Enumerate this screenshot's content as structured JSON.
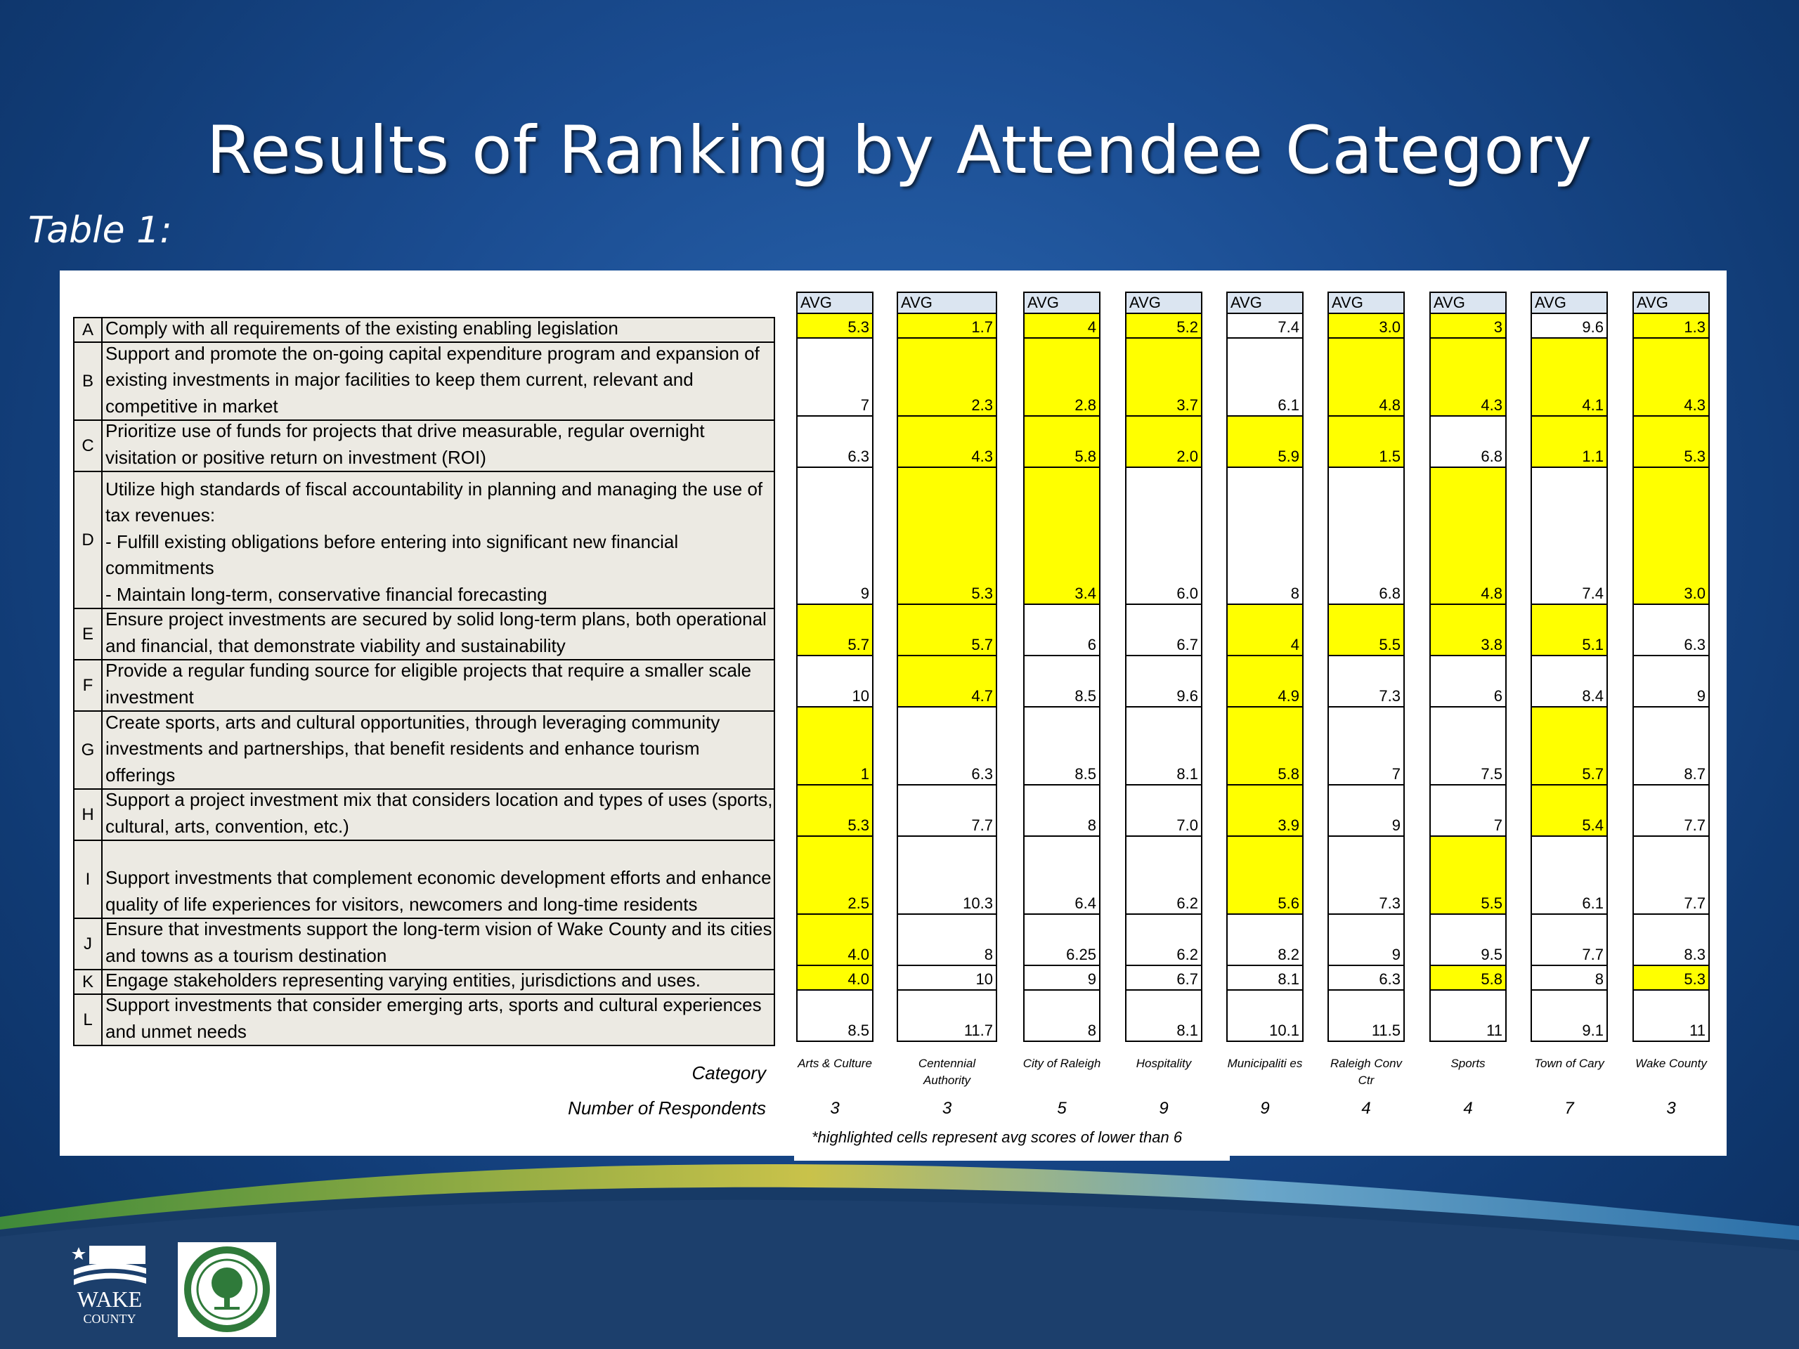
{
  "slide": {
    "title": "Results of Ranking by Attendee Category",
    "table_label": "Table 1:",
    "category_label": "Category",
    "respondents_label": "Number of Respondents",
    "note": "*highlighted cells represent avg scores of lower than 6",
    "avg_header": "AVG",
    "highlight_color": "#ffff00",
    "highlight_threshold": 6,
    "logo_text": "WAKE COUNTY"
  },
  "rows": [
    {
      "letter": "A",
      "text": "Comply with all requirements of the existing enabling legislation"
    },
    {
      "letter": "B",
      "text": "Support and promote the on-going capital expenditure program and expansion of existing investments in major  facilities to keep them current,  relevant and competitive in market"
    },
    {
      "letter": "C",
      "text": "Prioritize use of funds for projects that drive measurable, regular overnight visitation or positive return on investment (ROI)"
    },
    {
      "letter": "D",
      "text": "Utilize high standards of fiscal accountability in planning and managing the use of tax revenues:\n - Fulfill existing obligations before entering into significant new financial commitments\n- Maintain long-term, conservative financial forecasting"
    },
    {
      "letter": "E",
      "text": "Ensure project investments are secured by solid long-term plans, both operational and financial, that demonstrate viability and sustainability"
    },
    {
      "letter": "F",
      "text": "Provide a regular funding source for eligible projects that require a smaller scale investment"
    },
    {
      "letter": "G",
      "text": "Create sports, arts and cultural opportunities, through leveraging community investments and partnerships, that benefit residents and enhance tourism offerings"
    },
    {
      "letter": "H",
      "text": "Support a project investment mix that considers location and types of uses (sports, cultural, arts, convention, etc.)"
    },
    {
      "letter": "I",
      "text": "Support investments that complement economic development efforts and enhance quality of life experiences for visitors, newcomers and long-time residents"
    },
    {
      "letter": "J",
      "text": "Ensure that investments  support the long-term vision of Wake County and its cities and towns  as a tourism destination"
    },
    {
      "letter": "K",
      "text": "Engage stakeholders representing varying entities, jurisdictions and uses."
    },
    {
      "letter": "L",
      "text": "Support investments that consider emerging arts, sports and cultural experiences and unmet needs"
    }
  ],
  "categories": [
    {
      "name": "Arts & Culture",
      "respondents": "3",
      "values": [
        "5.3",
        "7",
        "6.3",
        "9",
        "5.7",
        "10",
        "1",
        "5.3",
        "2.5",
        "4.0",
        "4.0",
        "8.5"
      ]
    },
    {
      "name": "Centennial Authority",
      "respondents": "3",
      "values": [
        "1.7",
        "2.3",
        "4.3",
        "5.3",
        "5.7",
        "4.7",
        "6.3",
        "7.7",
        "10.3",
        "8",
        "10",
        "11.7"
      ]
    },
    {
      "name": "City of Raleigh",
      "respondents": "5",
      "values": [
        "4",
        "2.8",
        "5.8",
        "3.4",
        "6",
        "8.5",
        "8.5",
        "8",
        "6.4",
        "6.25",
        "9",
        "8"
      ]
    },
    {
      "name": "Hospitality",
      "respondents": "9",
      "values": [
        "5.2",
        "3.7",
        "2.0",
        "6.0",
        "6.7",
        "9.6",
        "8.1",
        "7.0",
        "6.2",
        "6.2",
        "6.7",
        "8.1"
      ]
    },
    {
      "name": "Municipaliti es",
      "respondents": "9",
      "values": [
        "7.4",
        "6.1",
        "5.9",
        "8",
        "4",
        "4.9",
        "5.8",
        "3.9",
        "5.6",
        "8.2",
        "8.1",
        "10.1"
      ]
    },
    {
      "name": "Raleigh Conv Ctr",
      "respondents": "4",
      "values": [
        "3.0",
        "4.8",
        "1.5",
        "6.8",
        "5.5",
        "7.3",
        "7",
        "9",
        "7.3",
        "9",
        "6.3",
        "11.5"
      ]
    },
    {
      "name": "Sports",
      "respondents": "4",
      "values": [
        "3",
        "4.3",
        "6.8",
        "4.8",
        "3.8",
        "6",
        "7.5",
        "7",
        "5.5",
        "9.5",
        "5.8",
        "11"
      ]
    },
    {
      "name": "Town of Cary",
      "respondents": "7",
      "values": [
        "9.6",
        "4.1",
        "1.1",
        "7.4",
        "5.1",
        "8.4",
        "5.7",
        "5.4",
        "6.1",
        "7.7",
        "8",
        "9.1"
      ]
    },
    {
      "name": "Wake County",
      "respondents": "3",
      "values": [
        "1.3",
        "4.3",
        "5.3",
        "3.0",
        "6.3",
        "9",
        "8.7",
        "7.7",
        "7.7",
        "8.3",
        "5.3",
        "11"
      ]
    }
  ]
}
